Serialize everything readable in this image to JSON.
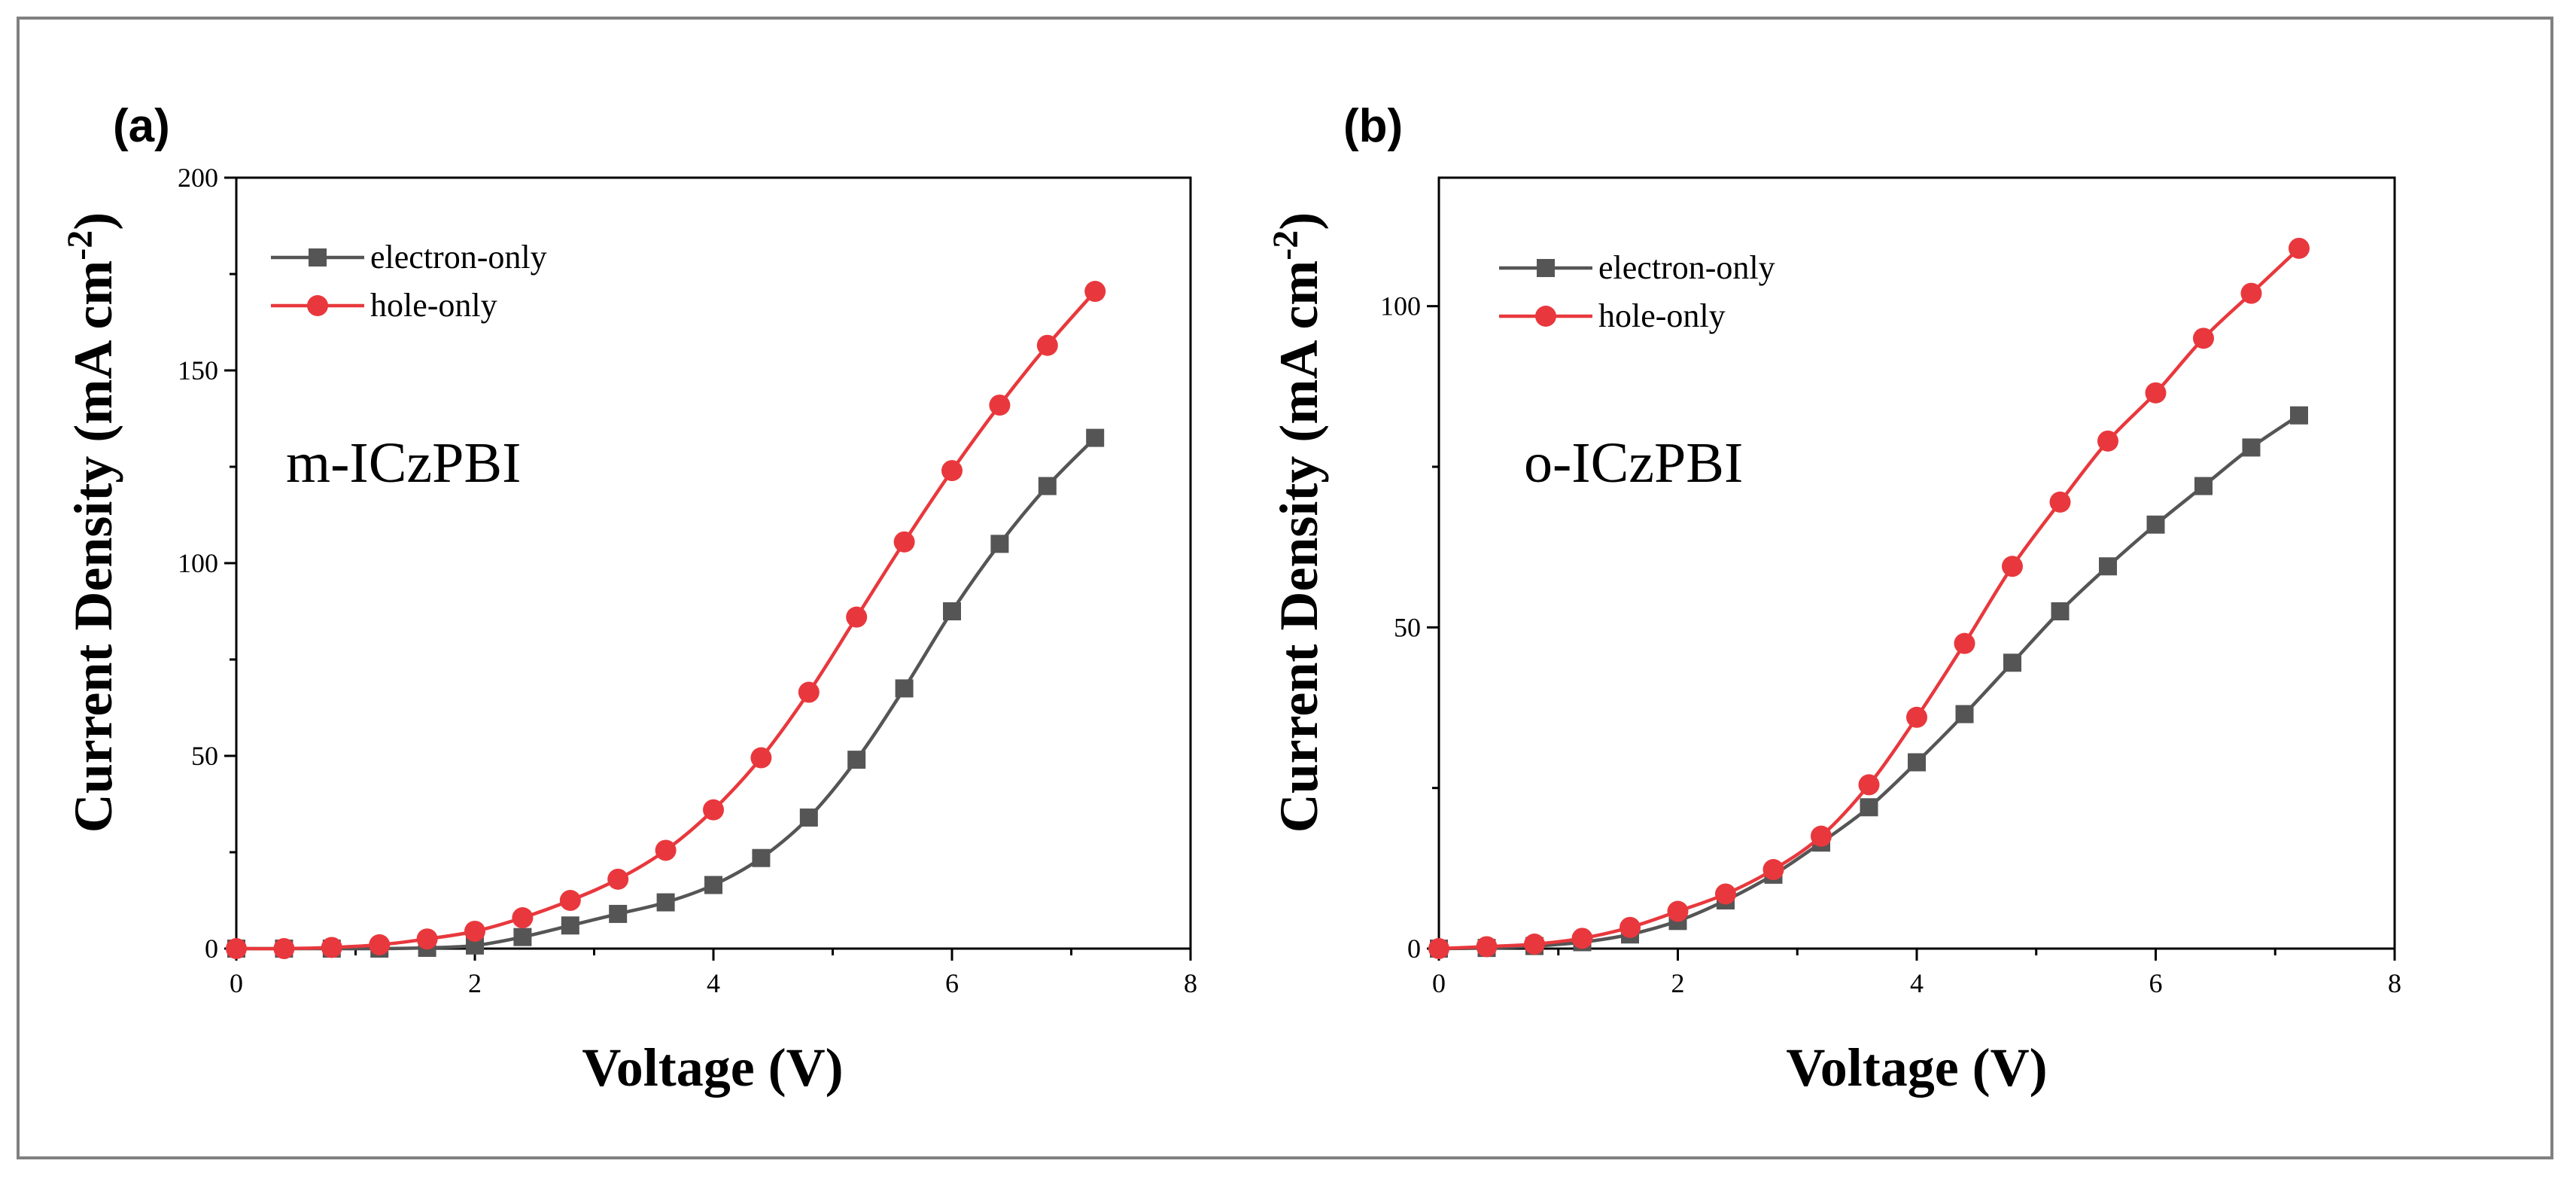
{
  "chart_data": [
    {
      "type": "line",
      "panel_label": "(a)",
      "annotation": "m-ICzPBI",
      "xlabel": "Voltage (V)",
      "ylabel": "Current Density (mA cm",
      "ylabel_sup": "-2",
      "ylabel_end": ")",
      "xlim": [
        0,
        8
      ],
      "ylim": [
        0,
        200
      ],
      "x_ticks": [
        0,
        2,
        4,
        6,
        8
      ],
      "y_ticks": [
        0,
        50,
        100,
        150,
        200
      ],
      "grid": false,
      "legend_position": "top-left",
      "series": [
        {
          "name": "electron-only",
          "color": "#555555",
          "marker": "square",
          "x": [
            0,
            0.4,
            0.8,
            1.2,
            1.6,
            2.0,
            2.4,
            2.8,
            3.2,
            3.6,
            4.0,
            4.4,
            4.8,
            5.2,
            5.6,
            6.0,
            6.4,
            6.8,
            7.2
          ],
          "values": [
            0,
            0,
            0,
            0,
            0.2,
            0.8,
            3,
            6,
            9,
            12,
            16.5,
            23.5,
            34,
            49,
            67.5,
            87.5,
            105,
            120,
            132.5
          ]
        },
        {
          "name": "hole-only",
          "color": "#e8383d",
          "marker": "circle",
          "x": [
            0,
            0.4,
            0.8,
            1.2,
            1.6,
            2.0,
            2.4,
            2.8,
            3.2,
            3.6,
            4.0,
            4.4,
            4.8,
            5.2,
            5.6,
            6.0,
            6.4,
            6.8,
            7.2
          ],
          "values": [
            0,
            0,
            0.3,
            1,
            2.5,
            4.5,
            8,
            12.5,
            18,
            25.5,
            36,
            49.5,
            66.5,
            86,
            105.5,
            124,
            141,
            156.5,
            170.5
          ]
        }
      ]
    },
    {
      "type": "line",
      "panel_label": "(b)",
      "annotation": "o-ICzPBI",
      "xlabel": "Voltage (V)",
      "ylabel": "Current Density (mA cm",
      "ylabel_sup": "-2",
      "ylabel_end": ")",
      "xlim": [
        0,
        8
      ],
      "ylim": [
        0,
        120
      ],
      "x_ticks": [
        0,
        2,
        4,
        6,
        8
      ],
      "y_ticks": [
        0,
        50,
        100
      ],
      "grid": false,
      "legend_position": "top-left",
      "series": [
        {
          "name": "electron-only",
          "color": "#555555",
          "marker": "square",
          "x": [
            0,
            0.4,
            0.8,
            1.2,
            1.6,
            2.0,
            2.4,
            2.8,
            3.2,
            3.6,
            4.0,
            4.4,
            4.8,
            5.2,
            5.6,
            6.0,
            6.4,
            6.8,
            7.2
          ],
          "values": [
            0,
            0.1,
            0.4,
            1,
            2.2,
            4.3,
            7.5,
            11.5,
            16.5,
            22,
            29,
            36.5,
            44.5,
            52.5,
            59.5,
            66,
            72,
            78,
            83
          ]
        },
        {
          "name": "hole-only",
          "color": "#e8383d",
          "marker": "circle",
          "x": [
            0,
            0.4,
            0.8,
            1.2,
            1.6,
            2.0,
            2.4,
            2.8,
            3.2,
            3.6,
            4.0,
            4.4,
            4.8,
            5.2,
            5.6,
            6.0,
            6.4,
            6.8,
            7.2
          ],
          "values": [
            0,
            0.3,
            0.7,
            1.6,
            3.3,
            5.8,
            8.5,
            12.3,
            17.5,
            25.5,
            36,
            47.5,
            59.5,
            69.5,
            79,
            86.5,
            95,
            102,
            109
          ]
        }
      ]
    }
  ]
}
